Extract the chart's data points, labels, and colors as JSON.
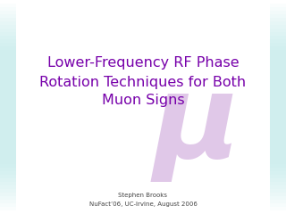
{
  "title_line1": "Lower-Frequency RF Phase",
  "title_line2": "Rotation Techniques for Both",
  "title_line3": "Muon Signs",
  "title_color": "#7700aa",
  "subtitle_line1": "Stephen Brooks",
  "subtitle_line2": "NuFact’06, UC-Irvine, August 2006",
  "subtitle_color": "#444444",
  "background_color": "#ffffff",
  "border_gradient_top": "#c8ecec",
  "border_gradient_bottom": "#e8f8f8",
  "mu_color": "#e0c8e8",
  "mu_symbol": "μ"
}
